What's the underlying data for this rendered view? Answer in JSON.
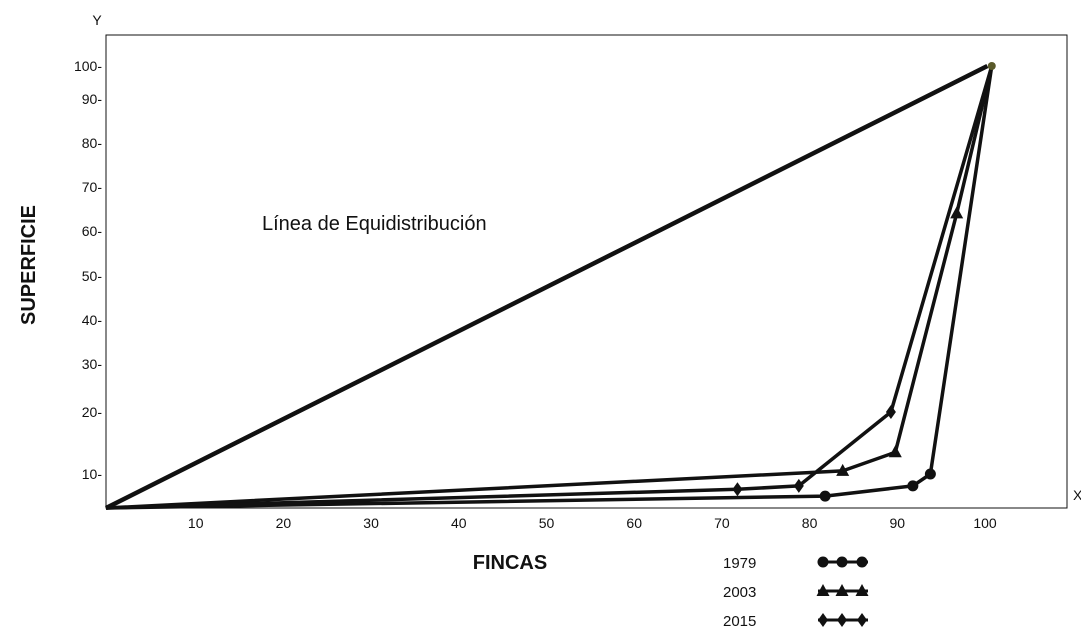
{
  "chart_data": {
    "type": "line",
    "xlabel": "FINCAS",
    "ylabel": "SUPERFICIE",
    "x_axis_letter": "X",
    "y_axis_letter": "Y",
    "xlim": [
      0,
      108
    ],
    "ylim": [
      0,
      104
    ],
    "x_ticks": [
      10,
      20,
      30,
      40,
      50,
      60,
      70,
      80,
      90,
      100
    ],
    "x_tick_labels": [
      "10",
      "20",
      "30",
      "40",
      "50",
      "60",
      "70",
      "80",
      "90",
      "100"
    ],
    "y_ticks": [
      10,
      20,
      30,
      40,
      50,
      60,
      70,
      80,
      90,
      100
    ],
    "y_tick_labels": [
      "10-",
      "20-",
      "30-",
      "40-",
      "50-",
      "60-",
      "70-",
      "80-",
      "90-",
      "100-"
    ],
    "grid": false,
    "legend_position": "bottom-right",
    "annotation": "Línea de Equidistribución",
    "equidistribution_line": {
      "x": [
        0,
        100.5
      ],
      "y": [
        0,
        100
      ]
    },
    "series": [
      {
        "name": "1979",
        "marker": "circle",
        "x": [
          0,
          82,
          92,
          94,
          101
        ],
        "y": [
          0,
          3.5,
          6.5,
          10,
          100
        ]
      },
      {
        "name": "2003",
        "marker": "triangle",
        "x": [
          0,
          84,
          90,
          97,
          101
        ],
        "y": [
          0,
          10.5,
          13.5,
          64,
          100
        ]
      },
      {
        "name": "2015",
        "marker": "diamond",
        "x": [
          0,
          72,
          79,
          89.5,
          101
        ],
        "y": [
          0,
          5.5,
          6.5,
          20,
          100
        ]
      }
    ]
  }
}
